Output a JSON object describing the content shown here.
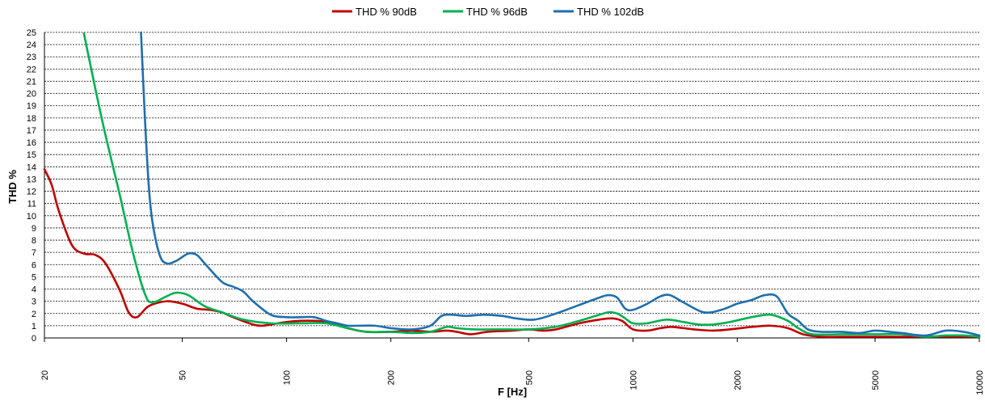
{
  "chart_data": {
    "type": "line",
    "xlabel": "F [Hz]",
    "ylabel": "THD %",
    "x_scale": "log",
    "xlim": [
      20,
      10000
    ],
    "ylim": [
      0,
      25
    ],
    "grid": true,
    "legend_position": "top-center",
    "x_ticks": [
      20,
      50,
      100,
      200,
      500,
      1000,
      2000,
      5000,
      10000
    ],
    "y_ticks": [
      0,
      1,
      2,
      3,
      4,
      5,
      6,
      7,
      8,
      9,
      10,
      11,
      12,
      13,
      14,
      15,
      16,
      17,
      18,
      19,
      20,
      21,
      22,
      23,
      24,
      25
    ],
    "series": [
      {
        "name": "THD % 90dB",
        "color": "#c00000",
        "points": [
          [
            20,
            13.8
          ],
          [
            21,
            12.5
          ],
          [
            22,
            10.4
          ],
          [
            24,
            7.6
          ],
          [
            26,
            6.9
          ],
          [
            28,
            6.8
          ],
          [
            30,
            6.1
          ],
          [
            33,
            3.9
          ],
          [
            35,
            2.1
          ],
          [
            37,
            1.7
          ],
          [
            40,
            2.6
          ],
          [
            45,
            3.0
          ],
          [
            50,
            2.8
          ],
          [
            55,
            2.4
          ],
          [
            60,
            2.3
          ],
          [
            65,
            2.1
          ],
          [
            70,
            1.7
          ],
          [
            80,
            1.1
          ],
          [
            85,
            1.0
          ],
          [
            90,
            1.1
          ],
          [
            100,
            1.3
          ],
          [
            110,
            1.4
          ],
          [
            120,
            1.4
          ],
          [
            130,
            1.3
          ],
          [
            150,
            0.8
          ],
          [
            170,
            0.5
          ],
          [
            200,
            0.5
          ],
          [
            230,
            0.6
          ],
          [
            260,
            0.5
          ],
          [
            290,
            0.6
          ],
          [
            310,
            0.5
          ],
          [
            340,
            0.3
          ],
          [
            380,
            0.5
          ],
          [
            450,
            0.6
          ],
          [
            500,
            0.7
          ],
          [
            550,
            0.6
          ],
          [
            600,
            0.7
          ],
          [
            700,
            1.2
          ],
          [
            800,
            1.5
          ],
          [
            870,
            1.6
          ],
          [
            930,
            1.4
          ],
          [
            1000,
            0.7
          ],
          [
            1100,
            0.6
          ],
          [
            1200,
            0.8
          ],
          [
            1300,
            0.9
          ],
          [
            1500,
            0.7
          ],
          [
            1700,
            0.6
          ],
          [
            1900,
            0.7
          ],
          [
            2200,
            0.9
          ],
          [
            2500,
            1.0
          ],
          [
            2800,
            0.8
          ],
          [
            3100,
            0.3
          ],
          [
            3500,
            0.1
          ],
          [
            4000,
            0.1
          ],
          [
            5000,
            0.1
          ],
          [
            6000,
            0.1
          ],
          [
            7000,
            0.1
          ],
          [
            8000,
            0.1
          ],
          [
            9000,
            0.1
          ],
          [
            10000,
            0.1
          ]
        ]
      },
      {
        "name": "THD % 96dB",
        "color": "#00b050",
        "points": [
          [
            26,
            24.9
          ],
          [
            28,
            20.5
          ],
          [
            30,
            16.6
          ],
          [
            33,
            11.7
          ],
          [
            36,
            7.0
          ],
          [
            39,
            3.6
          ],
          [
            41,
            2.9
          ],
          [
            45,
            3.4
          ],
          [
            48,
            3.7
          ],
          [
            52,
            3.5
          ],
          [
            58,
            2.6
          ],
          [
            65,
            2.1
          ],
          [
            75,
            1.5
          ],
          [
            90,
            1.2
          ],
          [
            110,
            1.2
          ],
          [
            130,
            1.2
          ],
          [
            150,
            0.8
          ],
          [
            170,
            0.5
          ],
          [
            200,
            0.5
          ],
          [
            230,
            0.4
          ],
          [
            260,
            0.5
          ],
          [
            290,
            0.9
          ],
          [
            310,
            0.8
          ],
          [
            350,
            0.7
          ],
          [
            420,
            0.7
          ],
          [
            500,
            0.7
          ],
          [
            560,
            0.8
          ],
          [
            620,
            1.0
          ],
          [
            700,
            1.4
          ],
          [
            780,
            1.8
          ],
          [
            850,
            2.1
          ],
          [
            900,
            2.0
          ],
          [
            950,
            1.6
          ],
          [
            1000,
            1.2
          ],
          [
            1100,
            1.2
          ],
          [
            1250,
            1.5
          ],
          [
            1400,
            1.3
          ],
          [
            1550,
            1.1
          ],
          [
            1700,
            1.1
          ],
          [
            1900,
            1.3
          ],
          [
            2200,
            1.7
          ],
          [
            2500,
            1.9
          ],
          [
            2800,
            1.4
          ],
          [
            3000,
            0.8
          ],
          [
            3300,
            0.3
          ],
          [
            4000,
            0.3
          ],
          [
            5000,
            0.3
          ],
          [
            6000,
            0.3
          ],
          [
            7000,
            0.1
          ],
          [
            8000,
            0.2
          ],
          [
            9000,
            0.2
          ],
          [
            10000,
            0.1
          ]
        ]
      },
      {
        "name": "THD % 102dB",
        "color": "#1f6fae",
        "points": [
          [
            38,
            25.0
          ],
          [
            39,
            18.0
          ],
          [
            40,
            12.5
          ],
          [
            41,
            9.5
          ],
          [
            43,
            6.8
          ],
          [
            45,
            6.1
          ],
          [
            48,
            6.3
          ],
          [
            52,
            6.9
          ],
          [
            55,
            6.8
          ],
          [
            58,
            6.1
          ],
          [
            65,
            4.6
          ],
          [
            70,
            4.2
          ],
          [
            75,
            3.8
          ],
          [
            80,
            3.0
          ],
          [
            90,
            1.9
          ],
          [
            100,
            1.7
          ],
          [
            110,
            1.7
          ],
          [
            120,
            1.7
          ],
          [
            130,
            1.4
          ],
          [
            140,
            1.2
          ],
          [
            150,
            1.0
          ],
          [
            160,
            1.0
          ],
          [
            180,
            1.0
          ],
          [
            200,
            0.8
          ],
          [
            230,
            0.7
          ],
          [
            260,
            1.0
          ],
          [
            280,
            1.8
          ],
          [
            300,
            1.9
          ],
          [
            330,
            1.8
          ],
          [
            370,
            1.9
          ],
          [
            420,
            1.8
          ],
          [
            460,
            1.6
          ],
          [
            520,
            1.5
          ],
          [
            600,
            2.0
          ],
          [
            700,
            2.7
          ],
          [
            800,
            3.3
          ],
          [
            850,
            3.5
          ],
          [
            900,
            3.3
          ],
          [
            950,
            2.4
          ],
          [
            1000,
            2.3
          ],
          [
            1100,
            2.8
          ],
          [
            1200,
            3.4
          ],
          [
            1280,
            3.5
          ],
          [
            1400,
            2.9
          ],
          [
            1600,
            2.1
          ],
          [
            1800,
            2.3
          ],
          [
            2000,
            2.8
          ],
          [
            2200,
            3.1
          ],
          [
            2400,
            3.5
          ],
          [
            2600,
            3.4
          ],
          [
            2800,
            2.0
          ],
          [
            3000,
            1.4
          ],
          [
            3200,
            0.7
          ],
          [
            3500,
            0.5
          ],
          [
            4000,
            0.5
          ],
          [
            4500,
            0.4
          ],
          [
            5000,
            0.6
          ],
          [
            5500,
            0.5
          ],
          [
            6000,
            0.4
          ],
          [
            7000,
            0.2
          ],
          [
            8000,
            0.6
          ],
          [
            9000,
            0.5
          ],
          [
            10000,
            0.2
          ]
        ]
      }
    ]
  }
}
